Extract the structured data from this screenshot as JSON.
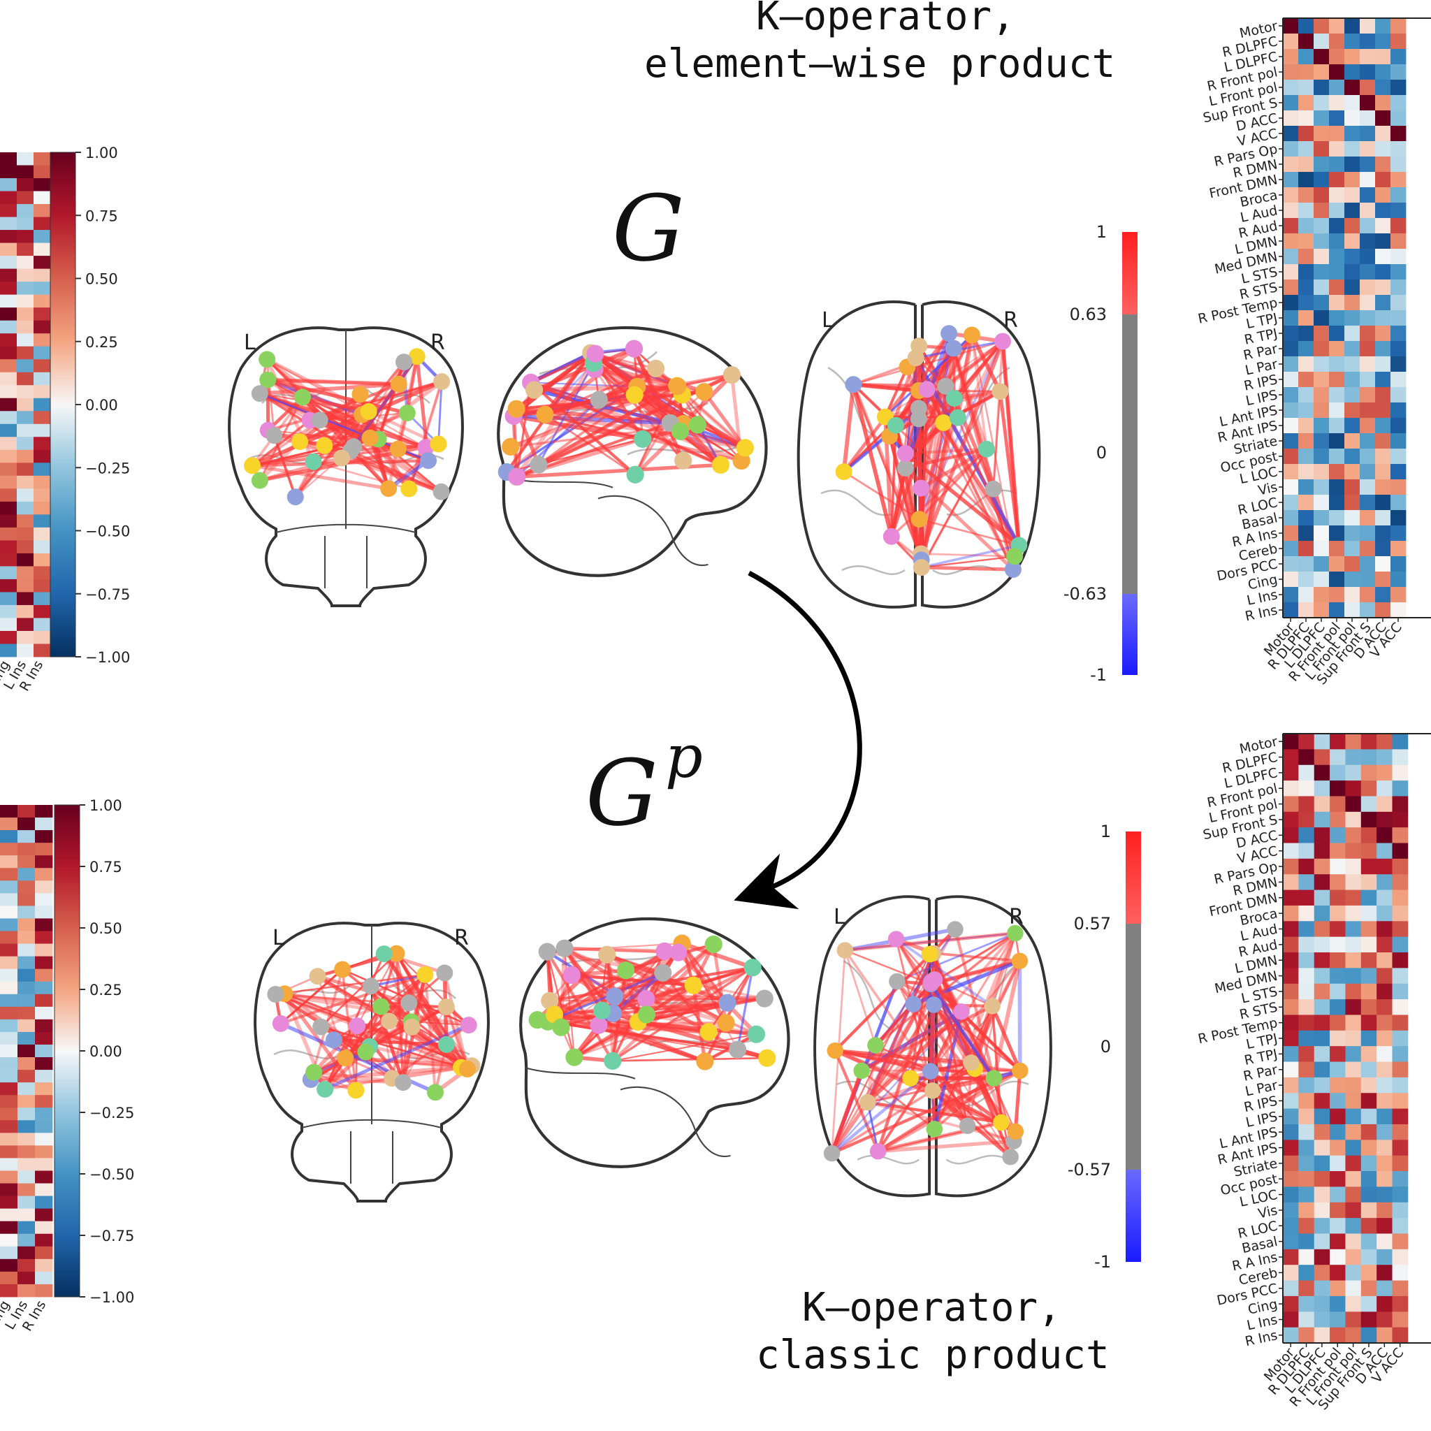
{
  "captions": {
    "top_line1": "K–operator,",
    "top_line2": "element–wise product",
    "bottom_line1": "K–operator,",
    "bottom_line2": "classic product"
  },
  "graph_labels": {
    "g": "G",
    "gp_base": "G",
    "gp_sup": "p"
  },
  "hemisphere": {
    "left": "L",
    "right": "R"
  },
  "colorbar_matrix": [
    "1.00",
    "0.75",
    "0.50",
    "0.25",
    "0.00",
    "−0.25",
    "−0.50",
    "−0.75",
    "−1.00"
  ],
  "colorbar_graph_top": [
    "1",
    "0.63",
    "0",
    "-0.63",
    "-1"
  ],
  "colorbar_graph_bottom": [
    "1",
    "0.57",
    "0",
    "-0.57",
    "-1"
  ],
  "left_partial_ticks": [
    "Cing",
    "L Ins",
    "R Ins"
  ],
  "rois": [
    "Motor",
    "R DLPFC",
    "L DLPFC",
    "R Front pol",
    "L Front pol",
    "Sup Front S",
    "D ACC",
    "V ACC",
    "R Pars Op",
    "R DMN",
    "Front DMN",
    "Broca",
    "L Aud",
    "R Aud",
    "L DMN",
    "Med DMN",
    "L STS",
    "R STS",
    "R Post Temp",
    "L TPJ",
    "R TPJ",
    "R Par",
    "L Par",
    "R IPS",
    "L IPS",
    "L Ant IPS",
    "R Ant IPS",
    "Striate",
    "Occ post",
    "L LOC",
    "Vis",
    "R LOC",
    "Basal",
    "R A Ins",
    "Cereb",
    "Dors PCC",
    "Cing",
    "L Ins",
    "R Ins"
  ],
  "colors": {
    "edge_positive": "#ff3b3b",
    "edge_negative": "#4a4aff",
    "matrix_max": "#67001f",
    "matrix_min": "#053061",
    "neutral": "#808080"
  }
}
